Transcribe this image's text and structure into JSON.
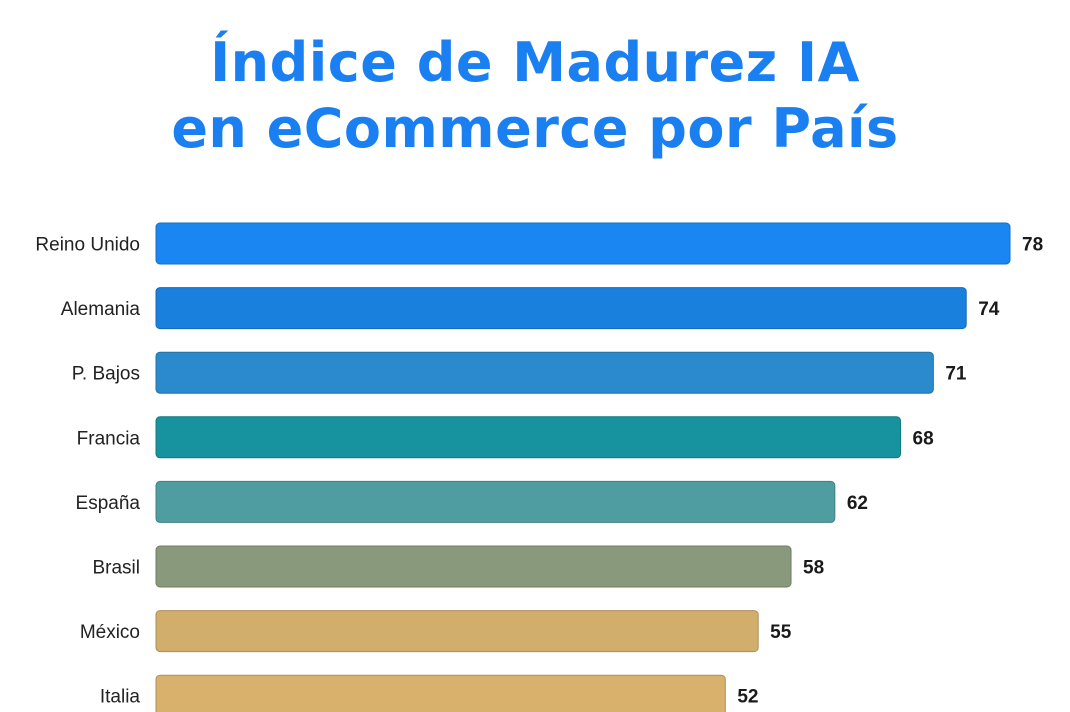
{
  "title": {
    "line1": "Índice de Madurez IA",
    "line2": "en eCommerce por País",
    "color": "#1a7ff0"
  },
  "chart_data": {
    "type": "bar",
    "orientation": "horizontal",
    "title": "Índice de Madurez IA en eCommerce por País",
    "xlabel": "",
    "ylabel": "",
    "grid": false,
    "legend": "none",
    "xlim": [
      0,
      78
    ],
    "categories": [
      "Reino Unido",
      "Alemania",
      "P. Bajos",
      "Francia",
      "España",
      "Brasil",
      "México",
      "Italia"
    ],
    "values": [
      78,
      74,
      71,
      68,
      62,
      58,
      55,
      52
    ],
    "colors": [
      "#1a86f2",
      "#1a80de",
      "#2a8acb",
      "#16939e",
      "#4f9da1",
      "#89997b",
      "#d2ae6c",
      "#d8b16c"
    ]
  }
}
